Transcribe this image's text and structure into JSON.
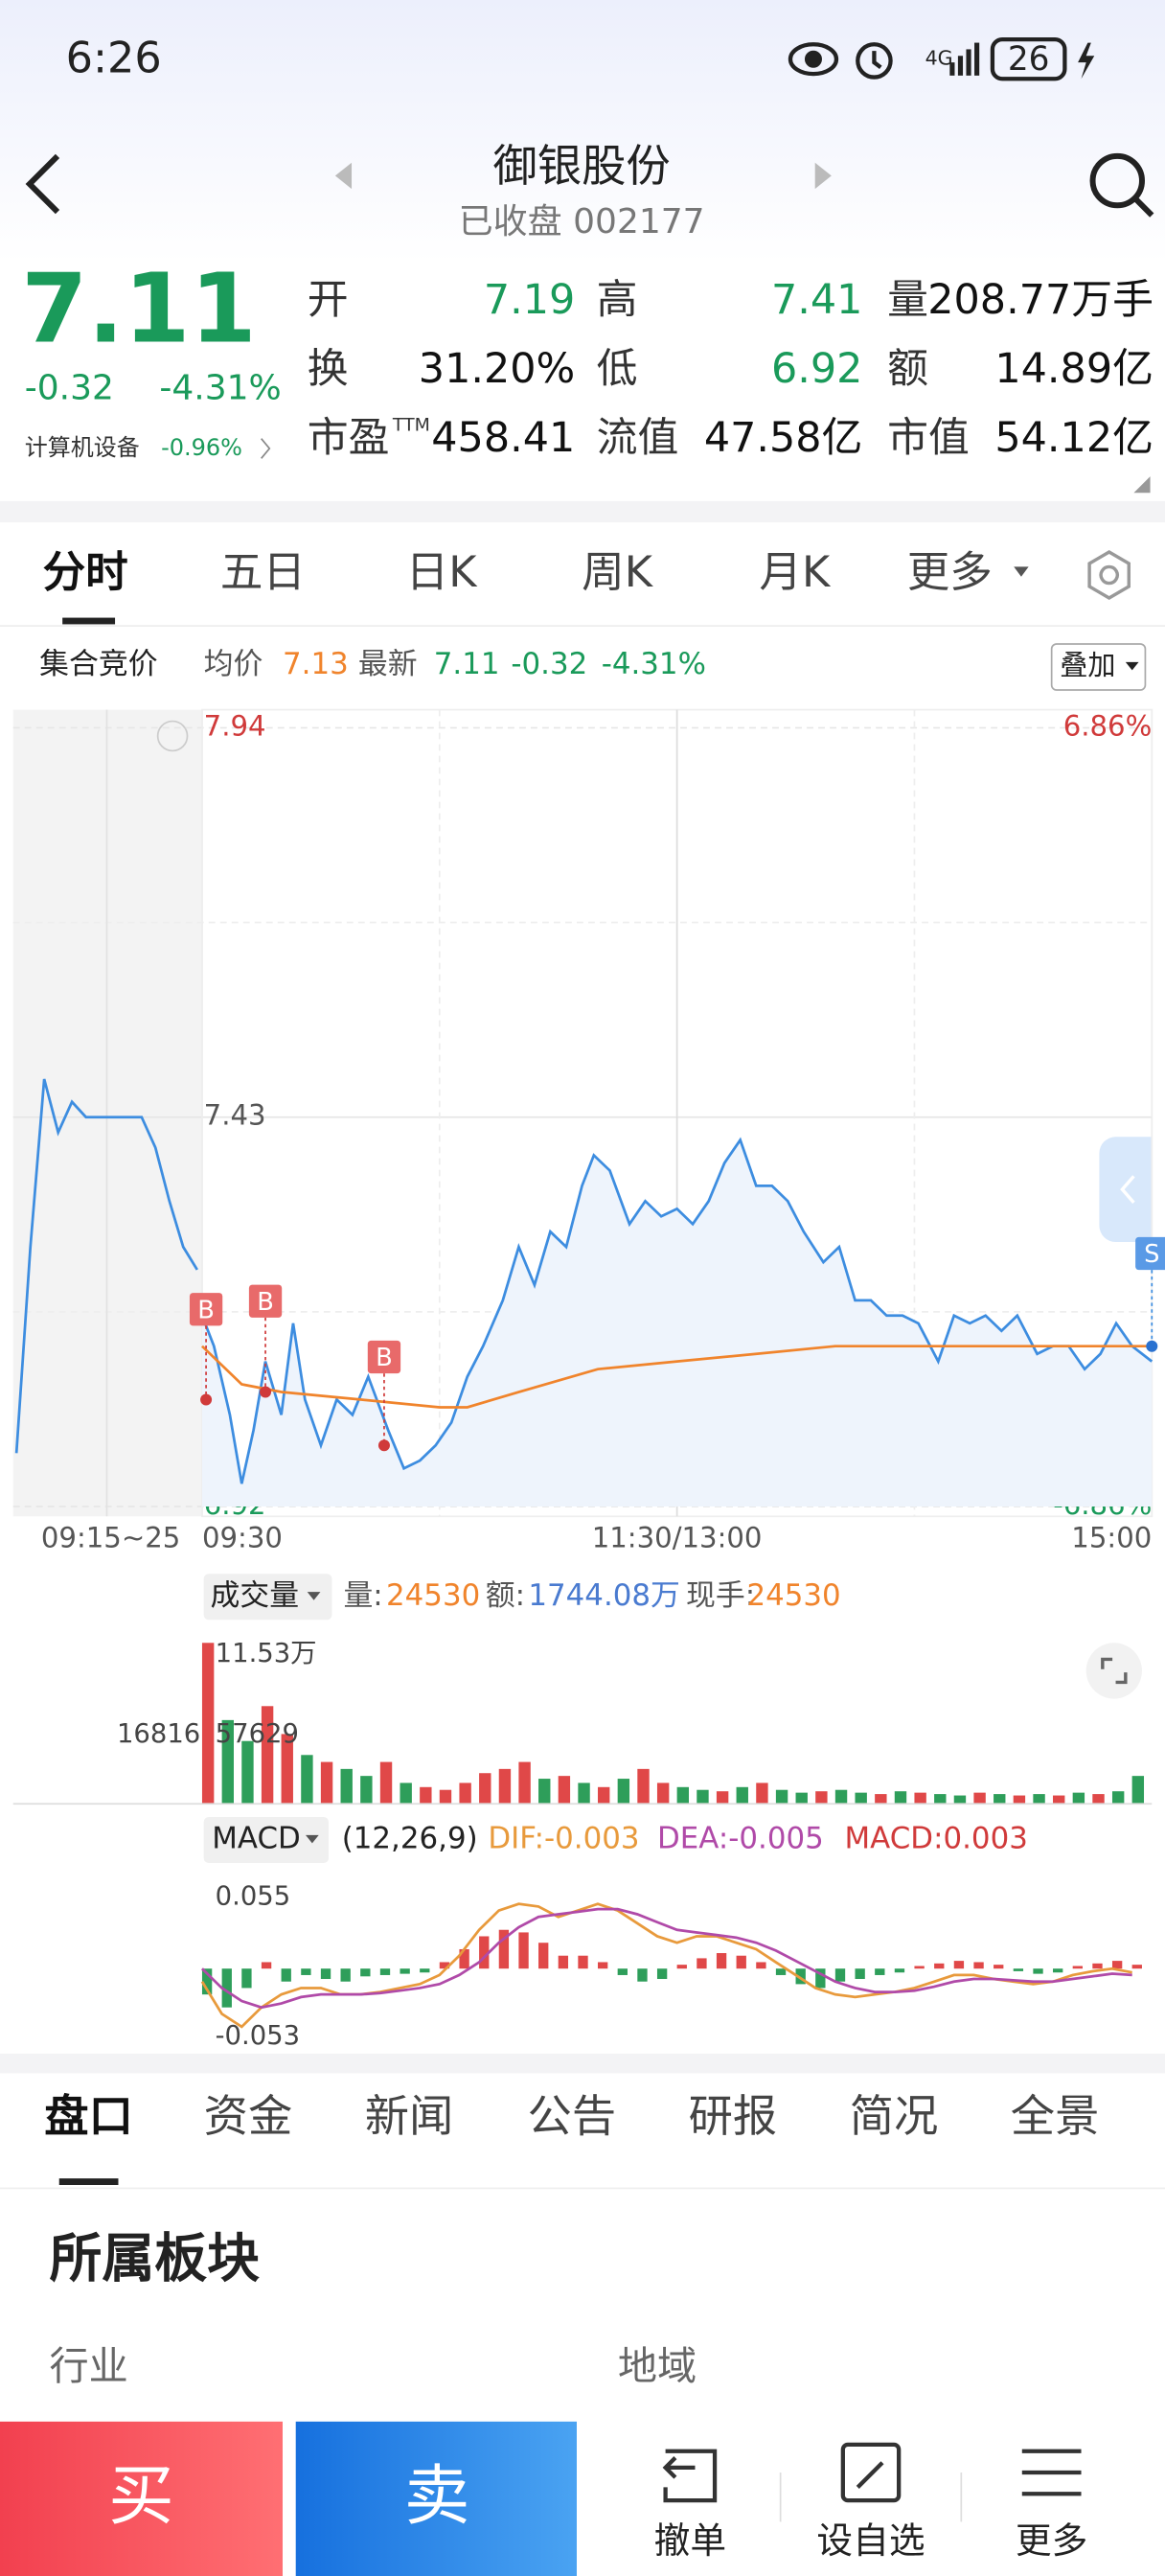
{
  "status_bar": {
    "time": "6:26",
    "battery": "26",
    "network": "4G"
  },
  "header": {
    "title": "御银股份",
    "subtitle": "已收盘 002177"
  },
  "quote": {
    "price": "7.11",
    "change": "-0.32",
    "change_pct": "-4.31%",
    "sector": "计算机设备",
    "sector_pct": "-0.96%",
    "stats": [
      {
        "label": "开",
        "value": "7.19"
      },
      {
        "label": "高",
        "value": "7.41"
      },
      {
        "label": "量",
        "value": "208.77万手"
      },
      {
        "label": "换",
        "value": "31.20%"
      },
      {
        "label": "低",
        "value": "6.92"
      },
      {
        "label": "额",
        "value": "14.89亿"
      },
      {
        "label": "市盈",
        "sup": "TTM",
        "value": "458.41"
      },
      {
        "label": "流值",
        "value": "47.58亿"
      },
      {
        "label": "市值",
        "value": "54.12亿"
      }
    ]
  },
  "chart_tabs": [
    "分时",
    "五日",
    "日K",
    "周K",
    "月K",
    "更多"
  ],
  "info_bar": {
    "auction": "集合竞价",
    "avg": "7.13",
    "latest": "7.11",
    "change": "-0.32",
    "change_pct": "-4.31%",
    "overlay": "叠加"
  },
  "chart_data": [
    {
      "type": "line",
      "ylim": [
        6.92,
        7.94
      ],
      "yticks": [
        7.94,
        7.43,
        6.92
      ],
      "y2lim": [
        -6.86,
        6.86
      ],
      "y2ticks": [
        {
          "value": 6.86,
          "label": "6.86%"
        },
        {
          "value": -6.86,
          "label": "-6.86%"
        }
      ],
      "xlim": [
        0,
        240
      ],
      "xticks": [
        {
          "value": 0,
          "label": "09:30"
        },
        {
          "value": 120,
          "label": "11:30/13:00"
        },
        {
          "value": 240,
          "label": "15:00"
        }
      ],
      "auction_label": "09:15~25",
      "grid": true,
      "auction_values": [
        6.99,
        7.26,
        7.48,
        7.41,
        7.45,
        7.43,
        7.43,
        7.43,
        7.43,
        7.43,
        7.39,
        7.32,
        7.26,
        7.23
      ],
      "series": [
        {
          "name": "最新",
          "color": "#3d8de0",
          "x": [
            0,
            3,
            7,
            10,
            13,
            16,
            20,
            23,
            26,
            30,
            34,
            38,
            42,
            47,
            51,
            55,
            59,
            63,
            67,
            71,
            76,
            80,
            84,
            88,
            92,
            96,
            99,
            103,
            108,
            112,
            116,
            120,
            124,
            128,
            132,
            136,
            140,
            144,
            148,
            152,
            157,
            161,
            165,
            169,
            173,
            177,
            181,
            186,
            190,
            194,
            198,
            202,
            206,
            211,
            215,
            219,
            223,
            227,
            231,
            235,
            240
          ],
          "values": [
            7.17,
            7.13,
            7.04,
            6.95,
            7.02,
            7.11,
            7.04,
            7.16,
            7.06,
            7.0,
            7.06,
            7.04,
            7.09,
            7.02,
            6.97,
            6.98,
            7.0,
            7.03,
            7.09,
            7.13,
            7.19,
            7.26,
            7.21,
            7.28,
            7.26,
            7.34,
            7.38,
            7.36,
            7.29,
            7.32,
            7.3,
            7.31,
            7.29,
            7.32,
            7.37,
            7.4,
            7.34,
            7.34,
            7.32,
            7.28,
            7.24,
            7.26,
            7.19,
            7.19,
            7.17,
            7.17,
            7.16,
            7.11,
            7.17,
            7.16,
            7.17,
            7.15,
            7.17,
            7.12,
            7.13,
            7.13,
            7.1,
            7.12,
            7.16,
            7.13,
            7.11
          ]
        },
        {
          "name": "均价",
          "color": "#f0842c",
          "x": [
            0,
            10,
            20,
            40,
            60,
            67,
            80,
            100,
            120,
            140,
            160,
            180,
            200,
            240
          ],
          "values": [
            7.13,
            7.08,
            7.07,
            7.06,
            7.05,
            7.05,
            7.07,
            7.1,
            7.11,
            7.12,
            7.13,
            7.13,
            7.13,
            7.13
          ]
        }
      ],
      "markers": [
        {
          "label": "B",
          "x": 1,
          "y": 7.06
        },
        {
          "label": "B",
          "x": 16,
          "y": 7.07
        },
        {
          "label": "B",
          "x": 46,
          "y": 7.0
        },
        {
          "label": "S",
          "x": 240,
          "y": 7.13
        }
      ]
    },
    {
      "type": "bar",
      "header": {
        "name": "成交量",
        "vol_label": "量:",
        "vol": "24530",
        "amt_label": "额:",
        "amt": "1744.08万",
        "hand_label": "现手:",
        "hand": "24530"
      },
      "ylim": [
        0,
        115300
      ],
      "yticks": [
        {
          "value": 115300,
          "label": "11.53万"
        },
        57629
      ],
      "auction_value": 16816,
      "xlim": [
        0,
        240
      ],
      "x": [
        0,
        5,
        10,
        15,
        20,
        25,
        30,
        35,
        40,
        45,
        50,
        55,
        60,
        65,
        70,
        75,
        80,
        85,
        90,
        95,
        100,
        105,
        110,
        115,
        120,
        125,
        130,
        135,
        140,
        145,
        150,
        155,
        160,
        165,
        170,
        175,
        180,
        185,
        190,
        195,
        200,
        205,
        210,
        215,
        220,
        225,
        230,
        235
      ],
      "values": [
        115300,
        60000,
        45000,
        70000,
        50000,
        35000,
        30000,
        25000,
        20000,
        30000,
        15000,
        12000,
        10000,
        15000,
        22000,
        25000,
        30000,
        18000,
        20000,
        15000,
        12000,
        18000,
        25000,
        15000,
        12000,
        10000,
        9000,
        12000,
        15000,
        10000,
        8000,
        9000,
        10000,
        8000,
        7000,
        9000,
        8000,
        7000,
        6000,
        8000,
        7000,
        6000,
        7000,
        6000,
        8000,
        7000,
        9000,
        20000
      ],
      "colors": [
        "#e04848",
        "#2e9e5a",
        "#2e9e5a",
        "#e04848",
        "#e04848",
        "#2e9e5a",
        "#e04848",
        "#2e9e5a",
        "#2e9e5a",
        "#e04848",
        "#2e9e5a",
        "#e04848",
        "#e04848",
        "#e04848",
        "#e04848",
        "#e04848",
        "#e04848",
        "#2e9e5a",
        "#e04848",
        "#2e9e5a",
        "#e04848",
        "#2e9e5a",
        "#e04848",
        "#e04848",
        "#2e9e5a",
        "#2e9e5a",
        "#e04848",
        "#2e9e5a",
        "#e04848",
        "#2e9e5a",
        "#2e9e5a",
        "#e04848",
        "#2e9e5a",
        "#2e9e5a",
        "#e04848",
        "#2e9e5a",
        "#e04848",
        "#2e9e5a",
        "#2e9e5a",
        "#e04848",
        "#2e9e5a",
        "#e04848",
        "#2e9e5a",
        "#e04848",
        "#2e9e5a",
        "#e04848",
        "#2e9e5a",
        "#2e9e5a"
      ]
    },
    {
      "type": "macd",
      "header": {
        "name": "MACD",
        "params": "(12,26,9)",
        "dif": "DIF:-0.003",
        "dea": "DEA:-0.005",
        "macd": "MACD:0.003"
      },
      "ylim": [
        -0.053,
        0.055
      ],
      "yticks": [
        0.055,
        -0.053
      ],
      "xlim": [
        0,
        240
      ],
      "up_color": "#e04848",
      "down_color": "#2e9e5a",
      "x": [
        0,
        5,
        10,
        15,
        20,
        25,
        30,
        35,
        40,
        45,
        50,
        55,
        60,
        65,
        70,
        75,
        80,
        85,
        90,
        95,
        100,
        105,
        110,
        115,
        120,
        125,
        130,
        135,
        140,
        145,
        150,
        155,
        160,
        165,
        170,
        175,
        180,
        185,
        190,
        195,
        200,
        205,
        210,
        215,
        220,
        225,
        230,
        235
      ],
      "histogram": [
        -0.02,
        -0.03,
        -0.015,
        0.005,
        -0.01,
        -0.005,
        -0.008,
        -0.01,
        -0.006,
        -0.005,
        -0.004,
        -0.003,
        0.005,
        0.015,
        0.025,
        0.03,
        0.028,
        0.02,
        0.01,
        0.01,
        0.005,
        -0.005,
        -0.01,
        -0.008,
        0.003,
        0.008,
        0.012,
        0.01,
        0.005,
        -0.005,
        -0.012,
        -0.015,
        -0.01,
        -0.008,
        -0.005,
        -0.003,
        0.002,
        0.004,
        0.006,
        0.005,
        0.003,
        -0.002,
        -0.004,
        -0.003,
        0.002,
        0.004,
        0.006,
        0.003
      ],
      "series": [
        {
          "name": "DIF",
          "color": "#e89a3c",
          "values": [
            -0.01,
            -0.035,
            -0.045,
            -0.03,
            -0.02,
            -0.015,
            -0.015,
            -0.02,
            -0.02,
            -0.018,
            -0.015,
            -0.012,
            -0.005,
            0.01,
            0.03,
            0.045,
            0.05,
            0.048,
            0.04,
            0.045,
            0.05,
            0.045,
            0.035,
            0.025,
            0.02,
            0.025,
            0.025,
            0.02,
            0.015,
            0.005,
            -0.005,
            -0.015,
            -0.02,
            -0.022,
            -0.02,
            -0.018,
            -0.015,
            -0.01,
            -0.005,
            -0.005,
            -0.008,
            -0.01,
            -0.012,
            -0.01,
            -0.005,
            -0.002,
            0,
            -0.003
          ]
        },
        {
          "name": "DEA",
          "color": "#b04aa8",
          "values": [
            0,
            -0.015,
            -0.025,
            -0.03,
            -0.027,
            -0.022,
            -0.02,
            -0.02,
            -0.02,
            -0.019,
            -0.017,
            -0.015,
            -0.012,
            -0.005,
            0.005,
            0.02,
            0.032,
            0.04,
            0.042,
            0.044,
            0.046,
            0.046,
            0.042,
            0.036,
            0.03,
            0.028,
            0.026,
            0.024,
            0.02,
            0.014,
            0.006,
            -0.002,
            -0.01,
            -0.015,
            -0.018,
            -0.018,
            -0.017,
            -0.014,
            -0.01,
            -0.008,
            -0.008,
            -0.009,
            -0.01,
            -0.01,
            -0.008,
            -0.006,
            -0.004,
            -0.005
          ]
        }
      ]
    }
  ],
  "detail_tabs": [
    "盘口",
    "资金",
    "新闻",
    "公告",
    "研报",
    "简况",
    "全景"
  ],
  "section": {
    "title": "所属板块",
    "industry": "行业",
    "region": "地域"
  },
  "bottom_bar": {
    "buy": "买",
    "sell": "卖",
    "cancel": "撤单",
    "watch": "设自选",
    "more": "更多"
  }
}
